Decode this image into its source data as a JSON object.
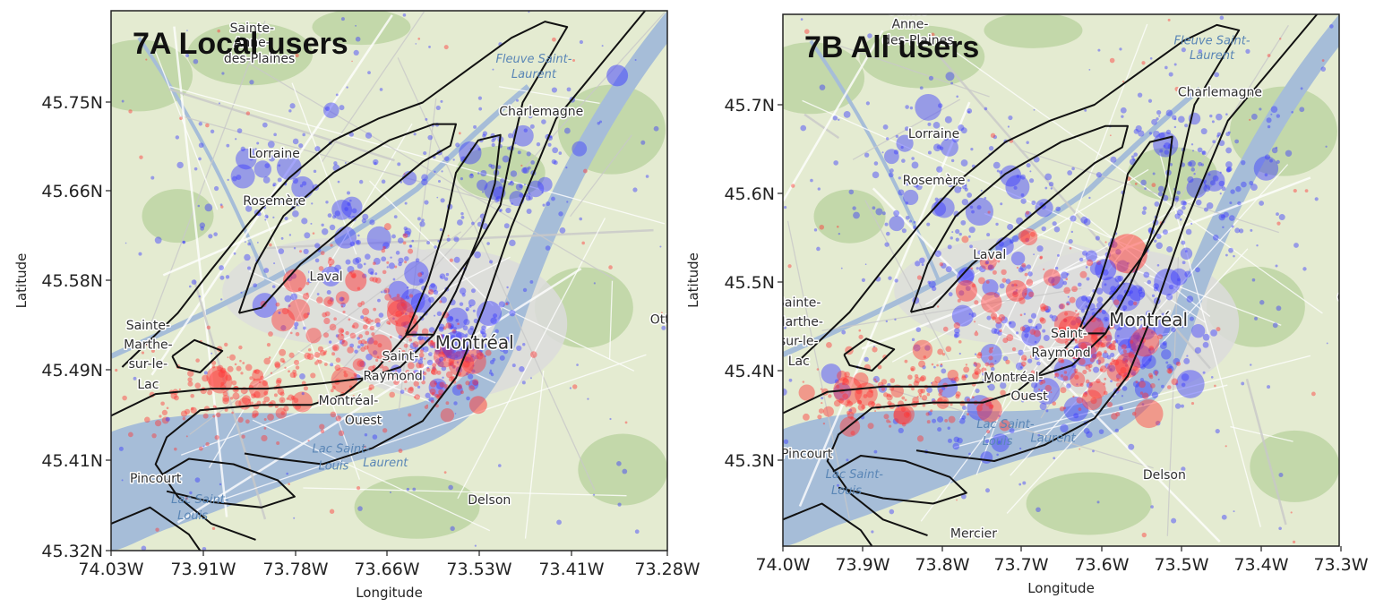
{
  "figure": {
    "panels": [
      {
        "id": "7A",
        "title": "7A Local users",
        "xlabel": "Longitude",
        "ylabel": "Latitude",
        "xticks": [
          "74.03W",
          "73.91W",
          "73.78W",
          "73.66W",
          "73.53W",
          "73.41W",
          "73.28W"
        ],
        "yticks": [
          "45.75N",
          "45.66N",
          "45.58N",
          "45.49N",
          "45.41N",
          "45.32N"
        ],
        "xlim": [
          -74.03,
          -73.28
        ],
        "ylim": [
          45.32,
          45.82
        ]
      },
      {
        "id": "7B",
        "title": "7B All users",
        "xlabel": "Longitude",
        "ylabel": "Latitude",
        "xticks": [
          "74.0W",
          "73.9W",
          "73.8W",
          "73.7W",
          "73.6W",
          "73.5W",
          "73.4W",
          "73.3W"
        ],
        "yticks": [
          "45.7N",
          "45.6N",
          "45.5N",
          "45.4N",
          "45.3N"
        ],
        "xlim": [
          -74.0,
          -73.3
        ],
        "ylim": [
          45.3,
          45.8
        ]
      }
    ],
    "places": [
      {
        "name": "Sainte-",
        "lon": -73.84,
        "lat": 45.8
      },
      {
        "name": "Anne-",
        "lon": -73.84,
        "lat": 45.787
      },
      {
        "name": "des-Plaines",
        "lon": -73.83,
        "lat": 45.772
      },
      {
        "name": "Charlemagne",
        "lon": -73.45,
        "lat": 45.723
      },
      {
        "name": "Lorraine",
        "lon": -73.81,
        "lat": 45.684
      },
      {
        "name": "Rosemère",
        "lon": -73.81,
        "lat": 45.64
      },
      {
        "name": "Laval",
        "lon": -73.74,
        "lat": 45.57
      },
      {
        "name": "Montréal",
        "lon": -73.54,
        "lat": 45.507,
        "big": true
      },
      {
        "name": "Sainte-",
        "lon": -73.98,
        "lat": 45.525
      },
      {
        "name": "Marthe-",
        "lon": -73.98,
        "lat": 45.507
      },
      {
        "name": "sur-le-",
        "lon": -73.98,
        "lat": 45.489
      },
      {
        "name": "Lac",
        "lon": -73.98,
        "lat": 45.47
      },
      {
        "name": "Saint-",
        "lon": -73.64,
        "lat": 45.496
      },
      {
        "name": "Raymond",
        "lon": -73.65,
        "lat": 45.478
      },
      {
        "name": "Montréal-",
        "lon": -73.71,
        "lat": 45.455
      },
      {
        "name": "Ouest",
        "lon": -73.69,
        "lat": 45.437
      },
      {
        "name": "Pincourt",
        "lon": -73.97,
        "lat": 45.383
      },
      {
        "name": "Delson",
        "lon": -73.52,
        "lat": 45.363
      },
      {
        "name": "Mercier",
        "lon": -73.76,
        "lat": 45.308
      },
      {
        "name": "Ott",
        "lon": -73.29,
        "lat": 45.53
      }
    ],
    "water_labels": [
      {
        "name": "Fleuve Saint-",
        "lon": -73.46,
        "lat": 45.772
      },
      {
        "name": "Laurent",
        "lon": -73.46,
        "lat": 45.758
      },
      {
        "name": "Lac Saint-",
        "lon": -73.72,
        "lat": 45.411
      },
      {
        "name": "Louis",
        "lon": -73.73,
        "lat": 45.395
      },
      {
        "name": "Laurent",
        "lon": -73.66,
        "lat": 45.398
      },
      {
        "name": "Lac Saint-",
        "lon": -73.91,
        "lat": 45.364
      },
      {
        "name": "Louis",
        "lon": -73.92,
        "lat": 45.349
      }
    ],
    "colors": {
      "land": "#e4ebd1",
      "forest": "#a8c98a",
      "water": "#a6bdd8",
      "urban": "#dcdcdc",
      "road": "#ffffff",
      "blue_dots": "#3a3aff",
      "red_dots": "#ff3535",
      "contour": "#111111"
    }
  }
}
